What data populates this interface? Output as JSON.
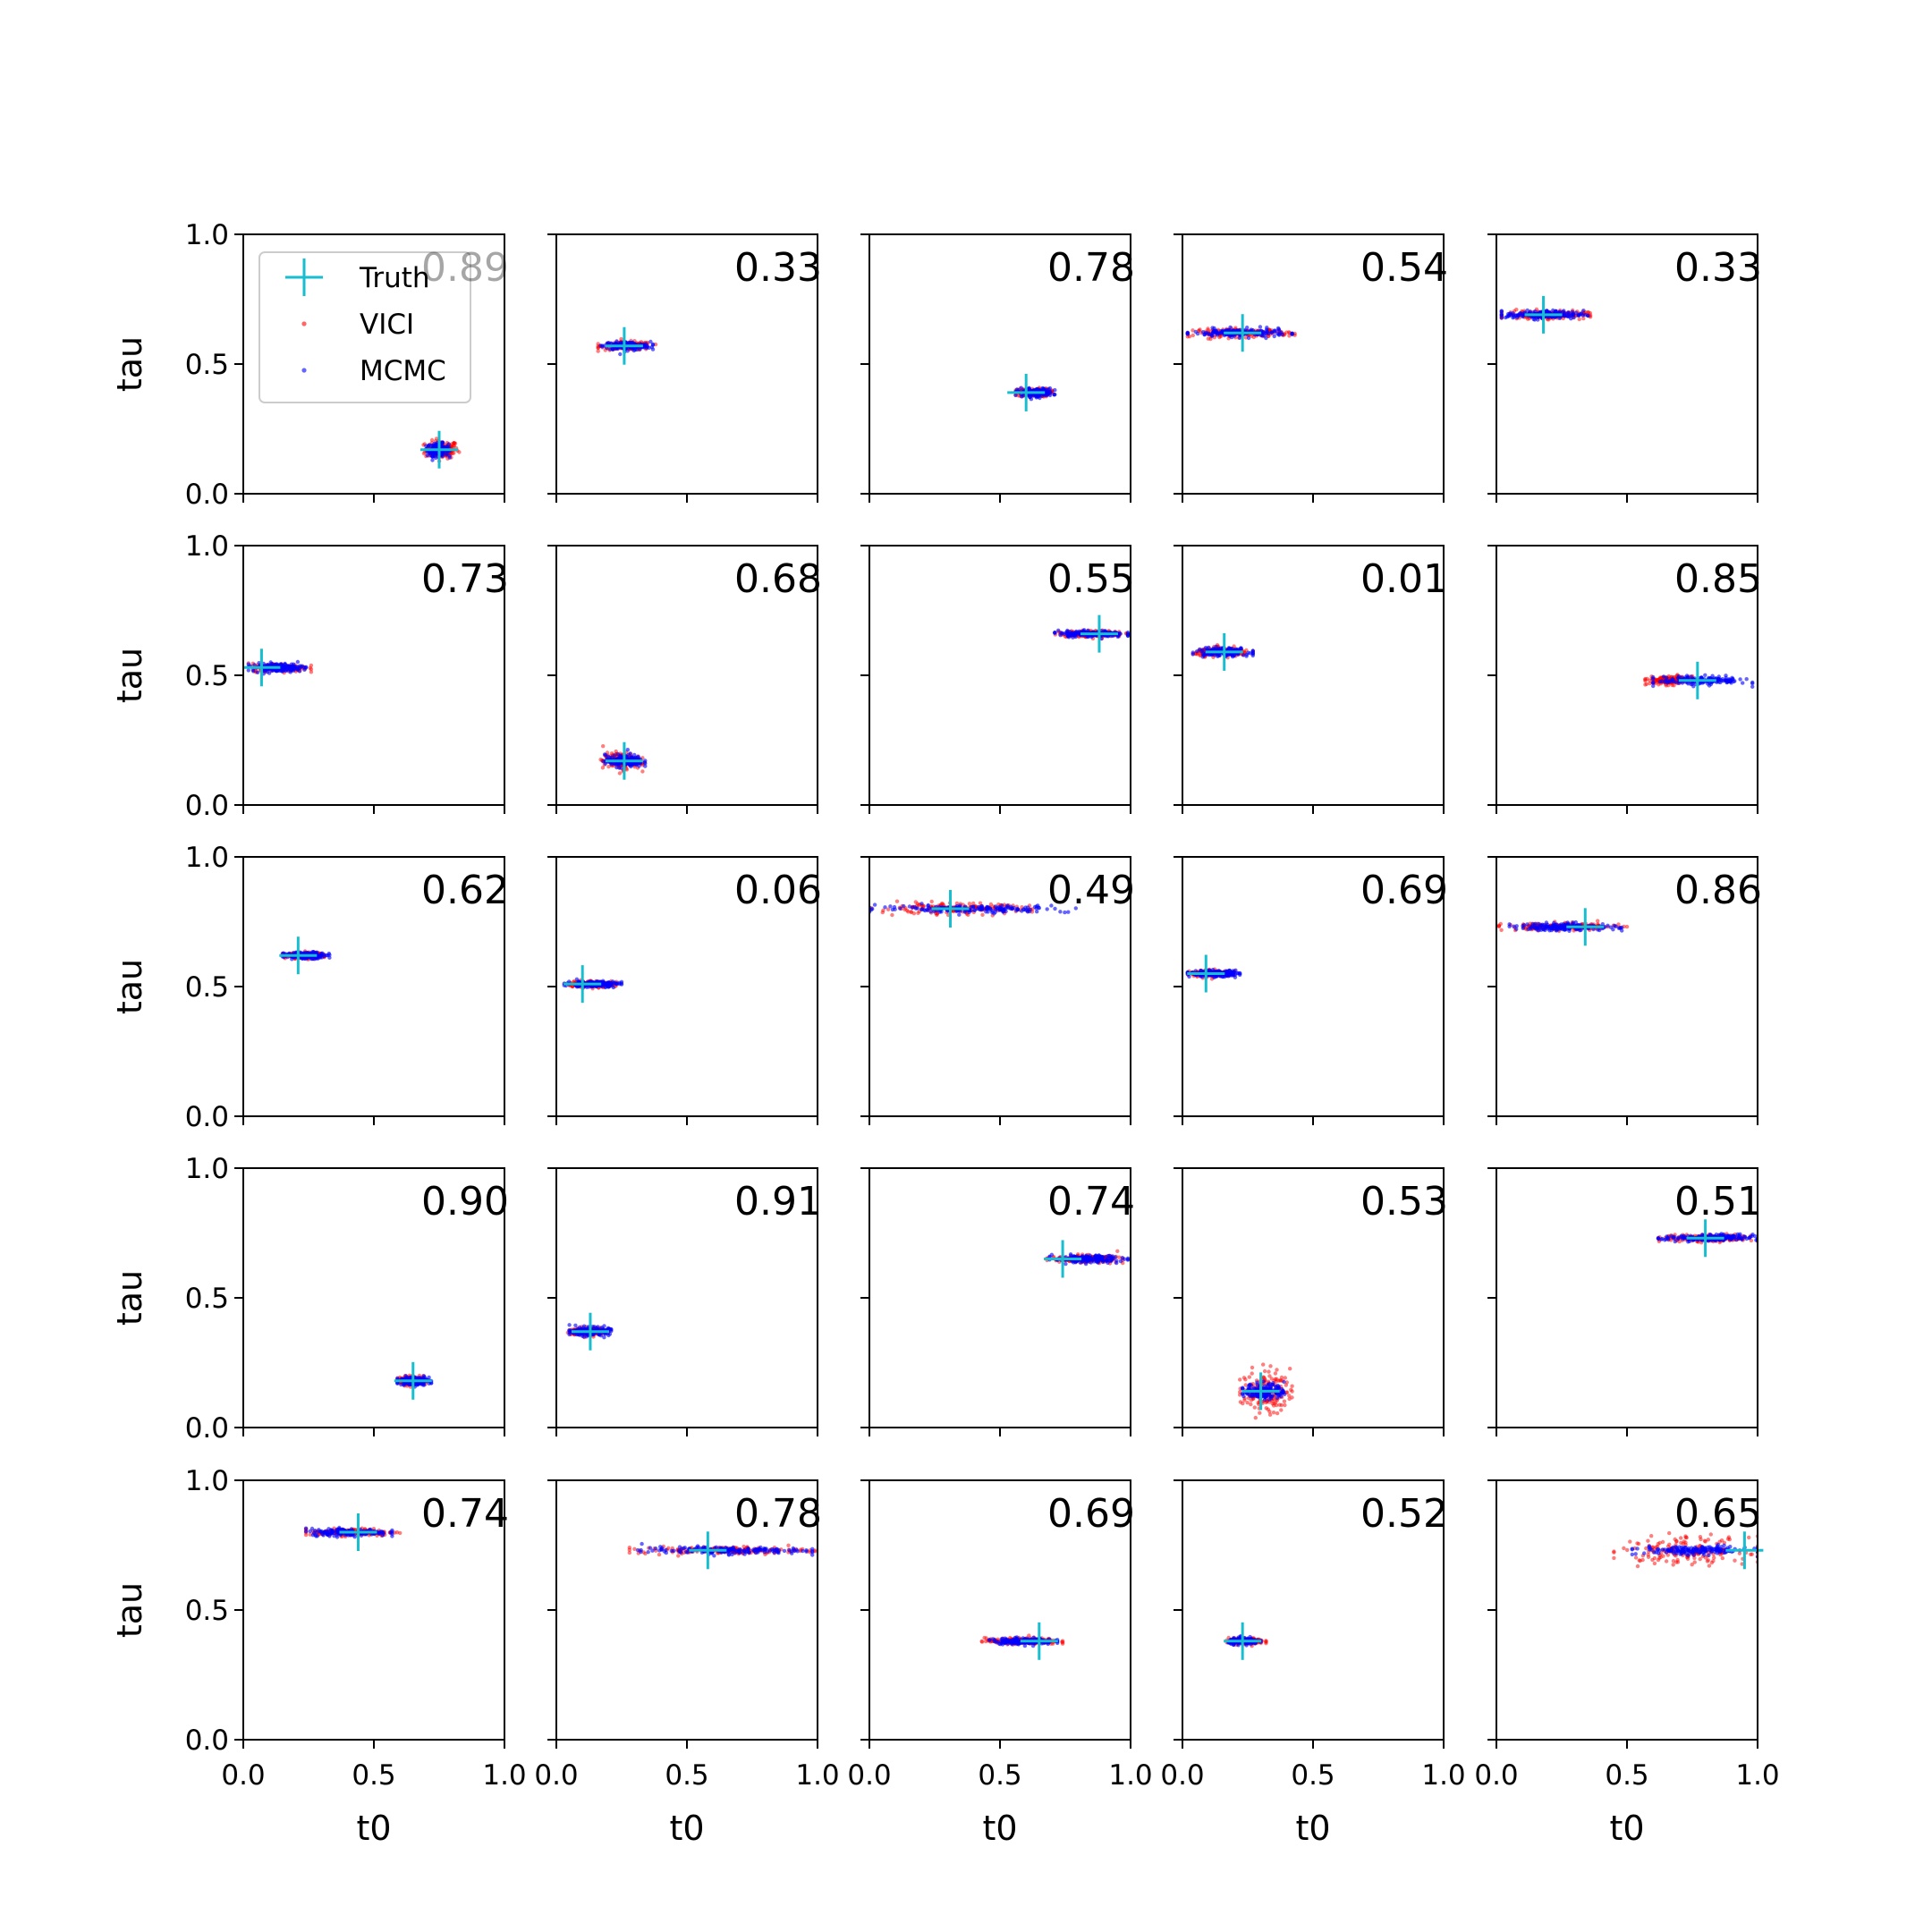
{
  "chart_data": {
    "type": "scatter",
    "layout": "grid",
    "rows": 5,
    "cols": 5,
    "xlabel": "t0",
    "ylabel": "tau",
    "xlim": [
      0.0,
      1.0
    ],
    "ylim": [
      0.0,
      1.0
    ],
    "xticks": [
      "0.0",
      "0.5",
      "1.0"
    ],
    "yticks": [
      "0.0",
      "0.5",
      "1.0"
    ],
    "grid": false,
    "legend": {
      "placement": "upper-left of first panel",
      "entries": [
        {
          "label": "Truth",
          "marker": "plus",
          "color": "#17becf"
        },
        {
          "label": "VICI",
          "marker": "dot",
          "color": "#ff0000"
        },
        {
          "label": "MCMC",
          "marker": "dot",
          "color": "#0000ff"
        }
      ]
    },
    "series_colors": {
      "truth": "#17becf",
      "vici": "#ff0000",
      "mcmc": "#0000ff"
    },
    "panels": [
      {
        "value": "0.89",
        "truth": [
          0.75,
          0.17
        ],
        "mcmc_t0": [
          0.7,
          0.79
        ],
        "vici_t0": [
          0.69,
          0.83
        ],
        "tau_spread": 0.012,
        "vici_tau_extra": 0.005
      },
      {
        "value": "0.33",
        "truth": [
          0.26,
          0.57
        ],
        "mcmc_t0": [
          0.17,
          0.37
        ],
        "vici_t0": [
          0.16,
          0.38
        ],
        "tau_spread": 0.008,
        "vici_tau_extra": 0.0
      },
      {
        "value": "0.78",
        "truth": [
          0.6,
          0.39
        ],
        "mcmc_t0": [
          0.56,
          0.71
        ],
        "vici_t0": [
          0.56,
          0.7
        ],
        "tau_spread": 0.008,
        "vici_tau_extra": 0.0
      },
      {
        "value": "0.54",
        "truth": [
          0.23,
          0.62
        ],
        "mcmc_t0": [
          0.02,
          0.42
        ],
        "vici_t0": [
          0.02,
          0.43
        ],
        "tau_spread": 0.008,
        "vici_tau_extra": 0.0
      },
      {
        "value": "0.33",
        "truth": [
          0.18,
          0.69
        ],
        "mcmc_t0": [
          0.02,
          0.35
        ],
        "vici_t0": [
          0.02,
          0.36
        ],
        "tau_spread": 0.008,
        "vici_tau_extra": 0.0
      },
      {
        "value": "0.73",
        "truth": [
          0.07,
          0.53
        ],
        "mcmc_t0": [
          0.02,
          0.24
        ],
        "vici_t0": [
          0.02,
          0.26
        ],
        "tau_spread": 0.008,
        "vici_tau_extra": 0.0
      },
      {
        "value": "0.68",
        "truth": [
          0.26,
          0.17
        ],
        "mcmc_t0": [
          0.18,
          0.34
        ],
        "vici_t0": [
          0.17,
          0.33
        ],
        "tau_spread": 0.012,
        "vici_tau_extra": 0.004
      },
      {
        "value": "0.55",
        "truth": [
          0.88,
          0.66
        ],
        "mcmc_t0": [
          0.71,
          0.99
        ],
        "vici_t0": [
          0.71,
          0.99
        ],
        "tau_spread": 0.006,
        "vici_tau_extra": 0.0
      },
      {
        "value": "0.01",
        "truth": [
          0.16,
          0.59
        ],
        "mcmc_t0": [
          0.04,
          0.27
        ],
        "vici_t0": [
          0.04,
          0.27
        ],
        "tau_spread": 0.008,
        "vici_tau_extra": 0.0
      },
      {
        "value": "0.85",
        "truth": [
          0.77,
          0.48
        ],
        "mcmc_t0": [
          0.6,
          0.98
        ],
        "vici_t0": [
          0.57,
          0.75
        ],
        "tau_spread": 0.008,
        "vici_tau_extra": 0.0
      },
      {
        "value": "0.62",
        "truth": [
          0.21,
          0.62
        ],
        "mcmc_t0": [
          0.15,
          0.33
        ],
        "vici_t0": [
          0.15,
          0.31
        ],
        "tau_spread": 0.006,
        "vici_tau_extra": 0.0
      },
      {
        "value": "0.06",
        "truth": [
          0.1,
          0.51
        ],
        "mcmc_t0": [
          0.03,
          0.25
        ],
        "vici_t0": [
          0.03,
          0.23
        ],
        "tau_spread": 0.006,
        "vici_tau_extra": 0.0
      },
      {
        "value": "0.49",
        "truth": [
          0.31,
          0.8
        ],
        "mcmc_t0": [
          0.0,
          0.81
        ],
        "vici_t0": [
          0.0,
          0.64
        ],
        "tau_spread": 0.007,
        "vici_tau_extra": 0.003
      },
      {
        "value": "0.69",
        "truth": [
          0.09,
          0.55
        ],
        "mcmc_t0": [
          0.02,
          0.22
        ],
        "vici_t0": [
          0.02,
          0.2
        ],
        "tau_spread": 0.006,
        "vici_tau_extra": 0.0
      },
      {
        "value": "0.86",
        "truth": [
          0.34,
          0.73
        ],
        "mcmc_t0": [
          0.05,
          0.48
        ],
        "vici_t0": [
          0.01,
          0.5
        ],
        "tau_spread": 0.007,
        "vici_tau_extra": 0.0
      },
      {
        "value": "0.90",
        "truth": [
          0.65,
          0.18
        ],
        "mcmc_t0": [
          0.59,
          0.72
        ],
        "vici_t0": [
          0.59,
          0.71
        ],
        "tau_spread": 0.008,
        "vici_tau_extra": 0.0
      },
      {
        "value": "0.91",
        "truth": [
          0.13,
          0.37
        ],
        "mcmc_t0": [
          0.05,
          0.21
        ],
        "vici_t0": [
          0.04,
          0.2
        ],
        "tau_spread": 0.008,
        "vici_tau_extra": 0.0
      },
      {
        "value": "0.74",
        "truth": [
          0.74,
          0.65
        ],
        "mcmc_t0": [
          0.69,
          0.99
        ],
        "vici_t0": [
          0.68,
          0.97
        ],
        "tau_spread": 0.007,
        "vici_tau_extra": 0.0
      },
      {
        "value": "0.53",
        "truth": [
          0.3,
          0.14
        ],
        "mcmc_t0": [
          0.23,
          0.4
        ],
        "vici_t0": [
          0.22,
          0.42
        ],
        "tau_spread": 0.015,
        "vici_tau_extra": 0.025
      },
      {
        "value": "0.51",
        "truth": [
          0.8,
          0.73
        ],
        "mcmc_t0": [
          0.62,
          1.0
        ],
        "vici_t0": [
          0.62,
          1.0
        ],
        "tau_spread": 0.007,
        "vici_tau_extra": 0.0
      },
      {
        "value": "0.74",
        "truth": [
          0.44,
          0.8
        ],
        "mcmc_t0": [
          0.24,
          0.57
        ],
        "vici_t0": [
          0.24,
          0.6
        ],
        "tau_spread": 0.007,
        "vici_tau_extra": 0.0
      },
      {
        "value": "0.78",
        "truth": [
          0.58,
          0.73
        ],
        "mcmc_t0": [
          0.29,
          0.98
        ],
        "vici_t0": [
          0.28,
          0.99
        ],
        "tau_spread": 0.007,
        "vici_tau_extra": 0.0
      },
      {
        "value": "0.69",
        "truth": [
          0.65,
          0.38
        ],
        "mcmc_t0": [
          0.46,
          0.72
        ],
        "vici_t0": [
          0.43,
          0.74
        ],
        "tau_spread": 0.006,
        "vici_tau_extra": 0.0
      },
      {
        "value": "0.52",
        "truth": [
          0.23,
          0.38
        ],
        "mcmc_t0": [
          0.17,
          0.3
        ],
        "vici_t0": [
          0.17,
          0.32
        ],
        "tau_spread": 0.006,
        "vici_tau_extra": 0.0
      },
      {
        "value": "0.65",
        "truth": [
          0.95,
          0.73
        ],
        "mcmc_t0": [
          0.52,
          1.0
        ],
        "vici_t0": [
          0.45,
          1.0
        ],
        "tau_spread": 0.008,
        "vici_tau_extra": 0.018
      }
    ]
  }
}
